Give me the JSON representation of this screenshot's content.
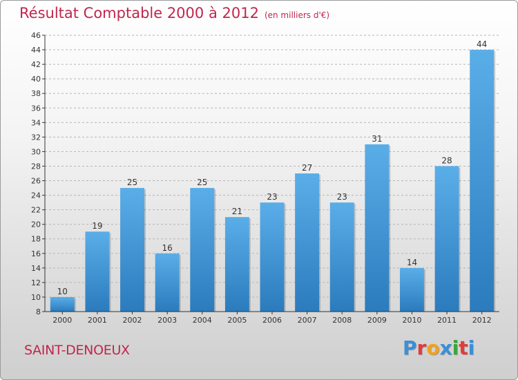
{
  "header": {
    "title": "Résultat Comptable 2000 à 2012",
    "subtitle": "(en milliers d'€)"
  },
  "footer": {
    "city": "SAINT-DENOEUX",
    "logo_letters": [
      "P",
      "r",
      "o",
      "x",
      "i",
      "t",
      "i"
    ],
    "logo_colors": [
      "#3a8fd8",
      "#e23b3b",
      "#f2a21c",
      "#3a8fd8",
      "#3aa63a",
      "#e23b3b",
      "#3a8fd8"
    ]
  },
  "colors": {
    "bar_light": "#5aaee8",
    "bar_dark": "#2b7bbd",
    "title": "#c0264d"
  },
  "chart_data": {
    "type": "bar",
    "title": "Résultat Comptable 2000 à 2012",
    "subtitle": "(en milliers d'€)",
    "xlabel": "",
    "ylabel": "",
    "categories": [
      "2000",
      "2001",
      "2002",
      "2003",
      "2004",
      "2005",
      "2006",
      "2007",
      "2008",
      "2009",
      "2010",
      "2011",
      "2012"
    ],
    "values": [
      10,
      19,
      25,
      16,
      25,
      21,
      23,
      27,
      23,
      31,
      14,
      28,
      44
    ],
    "ylim": [
      8,
      46
    ],
    "yticks": [
      8,
      10,
      12,
      14,
      16,
      18,
      20,
      22,
      24,
      26,
      28,
      30,
      32,
      34,
      36,
      38,
      40,
      42,
      44,
      46
    ],
    "grid": true
  }
}
